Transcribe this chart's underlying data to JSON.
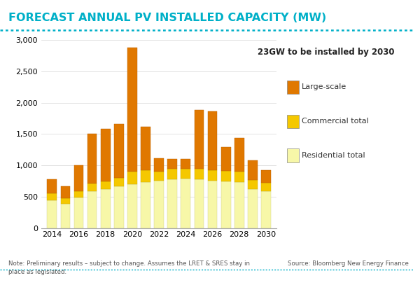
{
  "title": "FORECAST ANNUAL PV INSTALLED CAPACITY (MW)",
  "title_color": "#00b0c8",
  "background_color": "#ffffff",
  "plot_bg_color": "#ffffff",
  "years": [
    2014,
    2015,
    2016,
    2017,
    2018,
    2019,
    2020,
    2021,
    2022,
    2023,
    2024,
    2025,
    2026,
    2027,
    2028,
    2029,
    2030
  ],
  "residential": [
    440,
    390,
    490,
    590,
    620,
    670,
    700,
    730,
    750,
    780,
    785,
    775,
    755,
    745,
    735,
    620,
    585
  ],
  "commercial": [
    115,
    85,
    95,
    115,
    125,
    135,
    195,
    195,
    155,
    165,
    165,
    170,
    170,
    165,
    160,
    150,
    135
  ],
  "large_scale": [
    225,
    195,
    415,
    795,
    840,
    860,
    1985,
    685,
    205,
    155,
    155,
    940,
    940,
    385,
    545,
    305,
    205
  ],
  "color_residential": "#f7f7a8",
  "color_commercial": "#f5c800",
  "color_large_scale": "#e07800",
  "ylim": [
    0,
    3000
  ],
  "yticks": [
    0,
    500,
    1000,
    1500,
    2000,
    2500,
    3000
  ],
  "annotation_text": "23GW to be installed by 2030",
  "annotation_box_color": "#b8eaf4",
  "legend_labels": [
    "Large-scale",
    "Commercial total",
    "Residential total"
  ],
  "note_text": "Note: Preliminary results – subject to change. Assumes the LRET & SRES stay in\nplace as legislated.",
  "source_text": "Source: Bloomberg New Energy Finance",
  "dotted_line_color": "#00b0c8",
  "grid_color": "#cccccc"
}
